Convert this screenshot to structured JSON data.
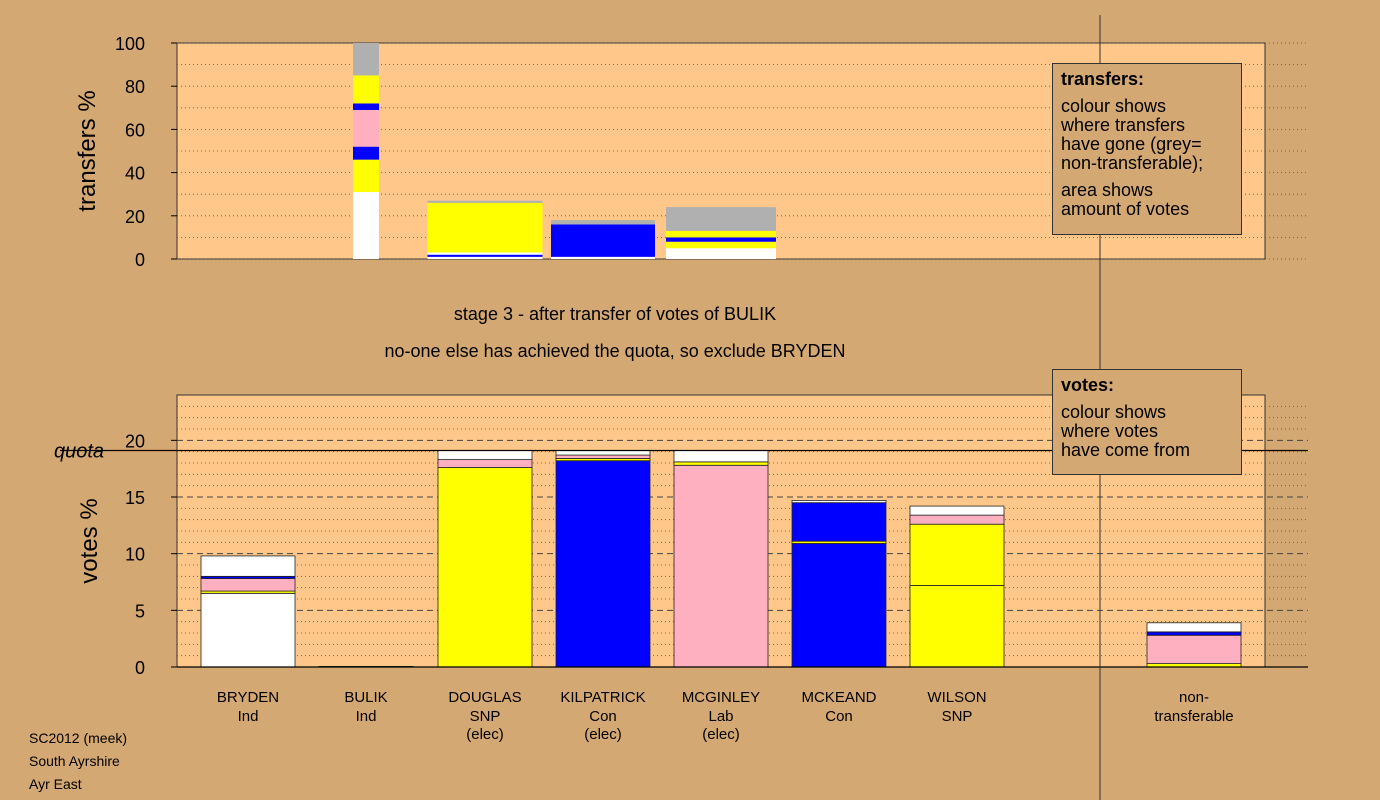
{
  "header": {
    "stage": "stage 3 - after transfer of votes of BULIK",
    "note": "no-one else has achieved the quota, so exclude BRYDEN"
  },
  "legend_transfers": {
    "title": "transfers:",
    "lines": [
      "colour shows",
      "where transfers",
      "have gone (grey=",
      "non-transferable);"
    ],
    "lines2": [
      "area shows",
      "amount of votes"
    ]
  },
  "legend_votes": {
    "title": "votes:",
    "lines": [
      "colour shows",
      "where votes",
      "have come from"
    ]
  },
  "footer": {
    "line1": "SC2012 (meek)",
    "line2": "South Ayrshire",
    "line3": "Ayr East"
  },
  "colors": {
    "background": "#d4a873",
    "panel": "#ffc88a",
    "SNP": "#ffff00",
    "Con": "#0000ff",
    "Lab": "#ffb0c0",
    "Ind": "#ffffff",
    "nontransferable": "#b0b0b0"
  },
  "chart_data": [
    {
      "type": "bar",
      "stacked": true,
      "ylabel": "transfers %",
      "ylim": [
        0,
        100
      ],
      "yticks": [
        0,
        20,
        40,
        60,
        80,
        100
      ],
      "grid": "dotted",
      "bars": [
        {
          "candidate": "BULIK",
          "segments": [
            {
              "color": "#ffffff",
              "value": 31
            },
            {
              "color": "#ffff00",
              "value": 15
            },
            {
              "color": "#0000ff",
              "value": 6
            },
            {
              "color": "#ffb0c0",
              "value": 17
            },
            {
              "color": "#0000ff",
              "value": 3
            },
            {
              "color": "#ffff00",
              "value": 13
            },
            {
              "color": "#b0b0b0",
              "value": 15
            }
          ]
        },
        {
          "candidate": "DOUGLAS",
          "segments": [
            {
              "color": "#ffffff",
              "value": 1
            },
            {
              "color": "#0000ff",
              "value": 1
            },
            {
              "color": "#ffffff",
              "value": 1
            },
            {
              "color": "#ffff00",
              "value": 23
            },
            {
              "color": "#b0b0b0",
              "value": 1
            }
          ]
        },
        {
          "candidate": "KILPATRICK",
          "segments": [
            {
              "color": "#ffffff",
              "value": 1
            },
            {
              "color": "#0000ff",
              "value": 15
            },
            {
              "color": "#b0b0b0",
              "value": 2
            }
          ]
        },
        {
          "candidate": "MCGINLEY",
          "segments": [
            {
              "color": "#ffffff",
              "value": 5
            },
            {
              "color": "#ffff00",
              "value": 3
            },
            {
              "color": "#0000ff",
              "value": 2
            },
            {
              "color": "#ffff00",
              "value": 3
            },
            {
              "color": "#b0b0b0",
              "value": 11
            }
          ]
        }
      ]
    },
    {
      "type": "bar",
      "stacked": true,
      "ylabel": "votes %",
      "ylim": [
        0,
        24
      ],
      "yticks": [
        0,
        5,
        10,
        15,
        20
      ],
      "quota": 19.1,
      "quota_label": "quota",
      "grid": "dashed",
      "categories": [
        {
          "name": "BRYDEN",
          "party": "Ind",
          "elec": ""
        },
        {
          "name": "BULIK",
          "party": "Ind",
          "elec": ""
        },
        {
          "name": "DOUGLAS",
          "party": "SNP",
          "elec": "(elec)"
        },
        {
          "name": "KILPATRICK",
          "party": "Con",
          "elec": "(elec)"
        },
        {
          "name": "MCGINLEY",
          "party": "Lab",
          "elec": "(elec)"
        },
        {
          "name": "MCKEAND",
          "party": "Con",
          "elec": ""
        },
        {
          "name": "WILSON",
          "party": "SNP",
          "elec": ""
        },
        {
          "name": "non-",
          "party": "transferable",
          "elec": ""
        }
      ],
      "bars": [
        {
          "candidate": "BRYDEN",
          "segments": [
            {
              "color": "#ffffff",
              "value": 6.5
            },
            {
              "color": "#ffff00",
              "value": 0.2
            },
            {
              "color": "#ffb0c0",
              "value": 1.1
            },
            {
              "color": "#0000ff",
              "value": 0.2
            },
            {
              "color": "#ffffff",
              "value": 1.8
            }
          ]
        },
        {
          "candidate": "BULIK",
          "segments": [
            {
              "color": "#ffffff",
              "value": 0.05
            }
          ]
        },
        {
          "candidate": "DOUGLAS",
          "segments": [
            {
              "color": "#ffff00",
              "value": 17.6
            },
            {
              "color": "#ffb0c0",
              "value": 0.7
            },
            {
              "color": "#ffffff",
              "value": 0.8
            }
          ]
        },
        {
          "candidate": "KILPATRICK",
          "segments": [
            {
              "color": "#0000ff",
              "value": 18.2
            },
            {
              "color": "#ffff00",
              "value": 0.2
            },
            {
              "color": "#ffb0c0",
              "value": 0.3
            },
            {
              "color": "#ffffff",
              "value": 0.4
            }
          ]
        },
        {
          "candidate": "MCGINLEY",
          "segments": [
            {
              "color": "#ffb0c0",
              "value": 17.8
            },
            {
              "color": "#ffff00",
              "value": 0.3
            },
            {
              "color": "#ffffff",
              "value": 1.0
            }
          ]
        },
        {
          "candidate": "MCKEAND",
          "segments": [
            {
              "color": "#0000ff",
              "value": 10.9
            },
            {
              "color": "#ffff00",
              "value": 0.2
            },
            {
              "color": "#0000ff",
              "value": 3.4
            },
            {
              "color": "#ffffff",
              "value": 0.2
            }
          ]
        },
        {
          "candidate": "WILSON",
          "segments": [
            {
              "color": "#ffff00",
              "value": 7.2
            },
            {
              "color": "#ffff00",
              "value": 5.4
            },
            {
              "color": "#ffb0c0",
              "value": 0.8
            },
            {
              "color": "#ffffff",
              "value": 0.8
            }
          ]
        },
        {
          "candidate": "non-transferable",
          "segments": [
            {
              "color": "#ffff00",
              "value": 0.3
            },
            {
              "color": "#ffb0c0",
              "value": 2.5
            },
            {
              "color": "#0000ff",
              "value": 0.3
            },
            {
              "color": "#ffffff",
              "value": 0.8
            }
          ]
        }
      ]
    }
  ]
}
